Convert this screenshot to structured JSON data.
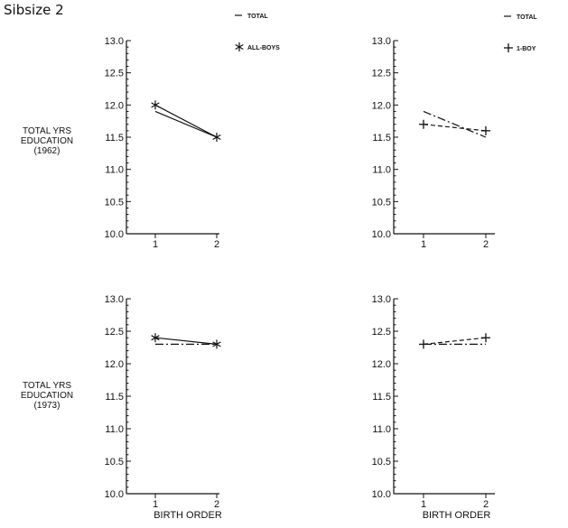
{
  "figure": {
    "title": "Sibsize 2",
    "row_labels": [
      [
        "TOTAL YRS",
        "EDUCATION",
        "(1962)"
      ],
      [
        "TOTAL YRS",
        "EDUCATION",
        "(1973)"
      ]
    ]
  },
  "chart_data": [
    {
      "type": "line",
      "id": "p1",
      "xlabel": "",
      "ylabel": "TOTAL YRS EDUCATION (1962)",
      "x": [
        1,
        2
      ],
      "xticks": [
        "1",
        "2"
      ],
      "ylim": [
        10.0,
        13.0
      ],
      "yticks": [
        "10.0",
        "10.5",
        "11.0",
        "11.5",
        "12.0",
        "12.5",
        "13.0"
      ],
      "legend": [
        {
          "label": "TOTAL",
          "symbol": "—"
        },
        {
          "label": "ALL-BOYS",
          "symbol": "✱"
        }
      ],
      "series": [
        {
          "name": "TOTAL",
          "values": [
            11.9,
            11.5
          ],
          "style": "solid"
        },
        {
          "name": "ALL-BOYS",
          "values": [
            12.0,
            11.5
          ],
          "style": "solid",
          "marker": "✱"
        }
      ]
    },
    {
      "type": "line",
      "id": "p2",
      "xlabel": "",
      "ylabel": "",
      "x": [
        1,
        2
      ],
      "xticks": [
        "1",
        "2"
      ],
      "ylim": [
        10.0,
        13.0
      ],
      "yticks": [
        "10.0",
        "10.5",
        "11.0",
        "11.5",
        "12.0",
        "12.5",
        "13.0"
      ],
      "legend": [
        {
          "label": "TOTAL",
          "symbol": "—"
        },
        {
          "label": "1-BOY",
          "symbol": "+"
        }
      ],
      "series": [
        {
          "name": "TOTAL",
          "values": [
            11.9,
            11.5
          ],
          "style": "dashdot"
        },
        {
          "name": "1-BOY",
          "values": [
            11.7,
            11.6
          ],
          "style": "dashed",
          "marker": "+"
        }
      ]
    },
    {
      "type": "line",
      "id": "p3",
      "xlabel": "BIRTH ORDER",
      "ylabel": "TOTAL YRS EDUCATION (1973)",
      "x": [
        1,
        2
      ],
      "xticks": [
        "1",
        "2"
      ],
      "ylim": [
        10.0,
        13.0
      ],
      "yticks": [
        "10.0",
        "10.5",
        "11.0",
        "11.5",
        "12.0",
        "12.5",
        "13.0"
      ],
      "legend": [],
      "series": [
        {
          "name": "TOTAL",
          "values": [
            12.3,
            12.3
          ],
          "style": "dashdot"
        },
        {
          "name": "ALL-BOYS",
          "values": [
            12.4,
            12.3
          ],
          "style": "solid",
          "marker": "✱"
        }
      ]
    },
    {
      "type": "line",
      "id": "p4",
      "xlabel": "BIRTH ORDER",
      "ylabel": "",
      "x": [
        1,
        2
      ],
      "xticks": [
        "1",
        "2"
      ],
      "ylim": [
        10.0,
        13.0
      ],
      "yticks": [
        "10.0",
        "10.5",
        "11.0",
        "11.5",
        "12.0",
        "12.5",
        "13.0"
      ],
      "legend": [],
      "series": [
        {
          "name": "TOTAL",
          "values": [
            12.3,
            12.3
          ],
          "style": "dashdot"
        },
        {
          "name": "1-BOY",
          "values": [
            12.3,
            12.4
          ],
          "style": "dashed",
          "marker": "+"
        }
      ]
    }
  ]
}
